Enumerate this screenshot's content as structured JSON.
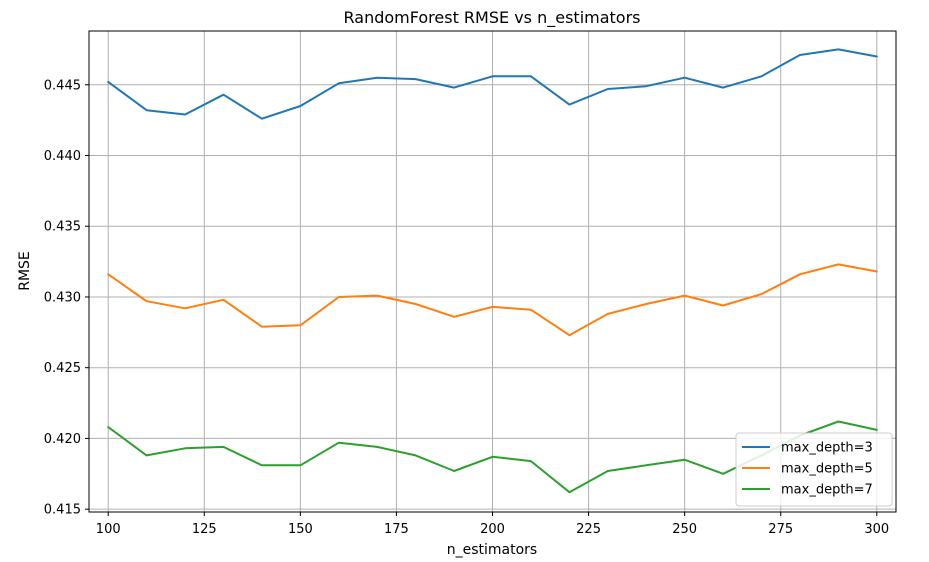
{
  "chart_data": {
    "type": "line",
    "title": "RandomForest RMSE vs n_estimators",
    "xlabel": "n_estimators",
    "ylabel": "RMSE",
    "xlim": [
      95,
      305
    ],
    "ylim": [
      0.4148,
      0.4488
    ],
    "xticks": [
      100,
      125,
      150,
      175,
      200,
      225,
      250,
      275,
      300
    ],
    "yticks": [
      0.415,
      0.42,
      0.425,
      0.43,
      0.435,
      0.44,
      0.445
    ],
    "xtick_labels": [
      "100",
      "125",
      "150",
      "175",
      "200",
      "225",
      "250",
      "275",
      "300"
    ],
    "ytick_labels": [
      "0.415",
      "0.420",
      "0.425",
      "0.430",
      "0.435",
      "0.440",
      "0.445"
    ],
    "grid": true,
    "legend_position": "lower-right",
    "x": [
      100,
      110,
      120,
      130,
      140,
      150,
      160,
      170,
      180,
      190,
      200,
      210,
      220,
      230,
      240,
      250,
      260,
      270,
      280,
      290,
      300
    ],
    "series": [
      {
        "name": "max_depth=3",
        "color": "#1f77b4",
        "values": [
          0.4452,
          0.4432,
          0.4429,
          0.4443,
          0.4426,
          0.4435,
          0.4451,
          0.4455,
          0.4454,
          0.4448,
          0.4456,
          0.4456,
          0.4436,
          0.4447,
          0.4449,
          0.4455,
          0.4448,
          0.4456,
          0.4471,
          0.4475,
          0.447
        ]
      },
      {
        "name": "max_depth=5",
        "color": "#ff7f0e",
        "values": [
          0.4316,
          0.4297,
          0.4292,
          0.4298,
          0.4279,
          0.428,
          0.43,
          0.4301,
          0.4295,
          0.4286,
          0.4293,
          0.4291,
          0.4273,
          0.4288,
          0.4295,
          0.4301,
          0.4294,
          0.4302,
          0.4316,
          0.4323,
          0.4318
        ]
      },
      {
        "name": "max_depth=7",
        "color": "#2ca02c",
        "values": [
          0.4208,
          0.4188,
          0.4193,
          0.4194,
          0.4181,
          0.4181,
          0.4197,
          0.4194,
          0.4188,
          0.4177,
          0.4187,
          0.4184,
          0.4162,
          0.4177,
          0.4181,
          0.4185,
          0.4175,
          0.4188,
          0.4202,
          0.4212,
          0.4206
        ]
      }
    ]
  }
}
